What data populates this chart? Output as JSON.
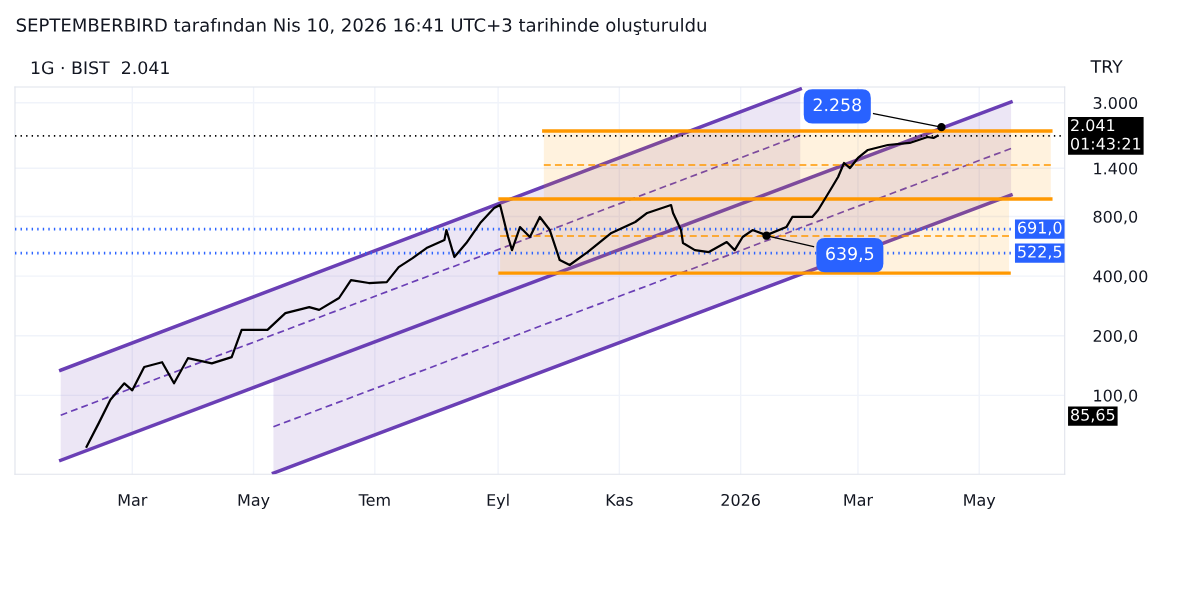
{
  "chart_data": {
    "type": "line",
    "title": "SEPTEMBERBIRD tarafından Nis 10, 2026 16:41 UTC+3 tarihinde oluşturuldu",
    "subtitle": "1G · BIST  2.041",
    "xlim": [
      "2025-01-01",
      "2026-06-13"
    ],
    "xticks": [
      {
        "value": "2025-03-01",
        "label": "Mar"
      },
      {
        "value": "2025-05-01",
        "label": "May"
      },
      {
        "value": "2025-07-01",
        "label": "Tem"
      },
      {
        "value": "2025-09-01",
        "label": "Eyl"
      },
      {
        "value": "2025-11-01",
        "label": "Kas"
      },
      {
        "value": "2026-01-01",
        "label": "2026"
      },
      {
        "value": "2026-03-01",
        "label": "Mar"
      },
      {
        "value": "2026-05-01",
        "label": "May"
      }
    ],
    "log": "y",
    "ylim": [
      40,
      3600
    ],
    "yticks": [
      {
        "value": 100,
        "label": "100,0"
      },
      {
        "value": 200,
        "label": "200,0"
      },
      {
        "value": 400,
        "label": "400,00"
      },
      {
        "value": 800,
        "label": "800,0"
      },
      {
        "value": 1400,
        "label": "1.400"
      },
      {
        "value": 3000,
        "label": "3.000"
      }
    ],
    "grid": true,
    "series": [
      {
        "color": "#6a3fb5",
        "line_style": "dashed",
        "x": [
          "2025-01-24",
          "2026-01-31"
        ],
        "values": [
          79.4,
          2055
        ],
        "lower": [
          47,
          1201
        ],
        "upper": [
          134,
          3518
        ]
      },
      {
        "color": "#6a3fb5",
        "line_style": "solid",
        "x": [
          "2025-01-24",
          "2026-01-31"
        ],
        "values": [
          134,
          3518
        ]
      },
      {
        "color": "#6a3fb5",
        "line_style": "solid",
        "x": [
          "2025-01-24",
          "2026-05-17"
        ],
        "values": [
          47,
          3025
        ]
      },
      {
        "color": "#6a3fb5",
        "line_style": "dashed",
        "x": [
          "2025-05-11",
          "2026-05-17"
        ],
        "values": [
          69.4,
          1762
        ],
        "lower": [
          40.5,
          1026
        ],
        "upper": [
          119,
          3025
        ]
      },
      {
        "color": "#6a3fb5",
        "line_style": "solid",
        "x": [
          "2025-05-11",
          "2026-05-17"
        ],
        "values": [
          40.5,
          1026
        ]
      },
      {
        "color": "#ff9800",
        "line_style": "dashed",
        "x": [
          "2025-09-24",
          "2026-06-06"
        ],
        "values": [
          1454,
          1454
        ],
        "lower": [
          979,
          979
        ],
        "upper": [
          2160,
          2160
        ]
      },
      {
        "color": "#ff9800",
        "line_style": "solid",
        "x": [
          "2025-09-24",
          "2026-06-06"
        ],
        "values": [
          2160,
          2160
        ]
      },
      {
        "color": "#ff9800",
        "line_style": "solid",
        "x": [
          "2025-09-02",
          "2026-06-06"
        ],
        "values": [
          979,
          979
        ]
      },
      {
        "color": "#ff9800",
        "line_style": "dashed",
        "x": [
          "2025-09-02",
          "2026-05-16"
        ],
        "values": [
          637,
          637
        ],
        "lower": [
          414,
          414
        ],
        "upper": [
          979,
          979
        ]
      },
      {
        "color": "#ff9800",
        "line_style": "solid",
        "x": [
          "2025-09-02",
          "2026-05-16"
        ],
        "values": [
          414,
          414
        ]
      },
      {
        "color": "#000000",
        "line_style": "solid",
        "x": [
          "2025-02-06",
          "2025-02-12",
          "2025-02-18",
          "2025-02-25",
          "2025-03-01",
          "2025-03-07",
          "2025-03-16",
          "2025-03-22",
          "2025-03-29",
          "2025-04-10",
          "2025-04-20",
          "2025-04-25",
          "2025-05-08",
          "2025-05-17",
          "2025-05-29",
          "2025-06-03",
          "2025-06-13",
          "2025-06-19",
          "2025-06-28",
          "2025-07-07",
          "2025-07-13",
          "2025-07-20",
          "2025-07-27",
          "2025-08-05",
          "2025-08-06",
          "2025-08-10",
          "2025-08-16",
          "2025-08-23",
          "2025-08-30",
          "2025-09-02",
          "2025-09-06",
          "2025-09-08",
          "2025-09-12",
          "2025-09-17",
          "2025-09-22",
          "2025-09-27",
          "2025-10-02",
          "2025-10-07",
          "2025-10-16",
          "2025-10-28",
          "2025-11-09",
          "2025-11-15",
          "2025-11-27",
          "2025-11-28",
          "2025-12-02",
          "2025-12-03",
          "2025-12-09",
          "2025-12-16",
          "2025-12-25",
          "2025-12-29",
          "2026-01-02",
          "2026-01-07",
          "2026-01-14",
          "2026-01-24",
          "2026-01-27",
          "2026-02-06",
          "2026-02-09",
          "2026-02-16",
          "2026-02-19",
          "2026-02-22",
          "2026-02-25",
          "2026-03-01",
          "2026-03-06",
          "2026-03-16",
          "2026-03-27",
          "2026-04-05",
          "2026-04-08",
          "2026-04-10"
        ],
        "values": [
          55,
          72,
          95,
          115,
          106,
          139,
          147,
          115,
          154,
          145,
          156,
          214,
          214,
          260,
          279,
          270,
          310,
          382,
          369,
          373,
          444,
          493,
          554,
          608,
          683,
          499,
          587,
          741,
          882,
          913,
          630,
          541,
          707,
          630,
          795,
          683,
          482,
          455,
          529,
          660,
          750,
          833,
          913,
          833,
          683,
          587,
          541,
          529,
          594,
          541,
          630,
          683,
          644,
          707,
          795,
          795,
          862,
          1126,
          1265,
          1489,
          1404,
          1578,
          1732,
          1835,
          1879,
          2014,
          1991,
          2041
        ]
      }
    ],
    "ref_lines": [
      {
        "axis": "y",
        "value": 2041,
        "label": "2.041\n01:43:21",
        "color": "#000000",
        "line_style": "dotted"
      },
      {
        "axis": "y",
        "value": 691,
        "label": "691,0",
        "color": "#2962ff",
        "line_style": "dotted"
      },
      {
        "axis": "y",
        "value": 522.5,
        "label": "522,5",
        "color": "#2962ff",
        "line_style": "dotted"
      }
    ],
    "annotations": [
      "TRY",
      "85,65",
      {
        "text": "2.258",
        "x": "2026-04-12",
        "y": 2258
      },
      {
        "text": "639,5",
        "x": "2026-01-14",
        "y": 639.5
      }
    ]
  }
}
